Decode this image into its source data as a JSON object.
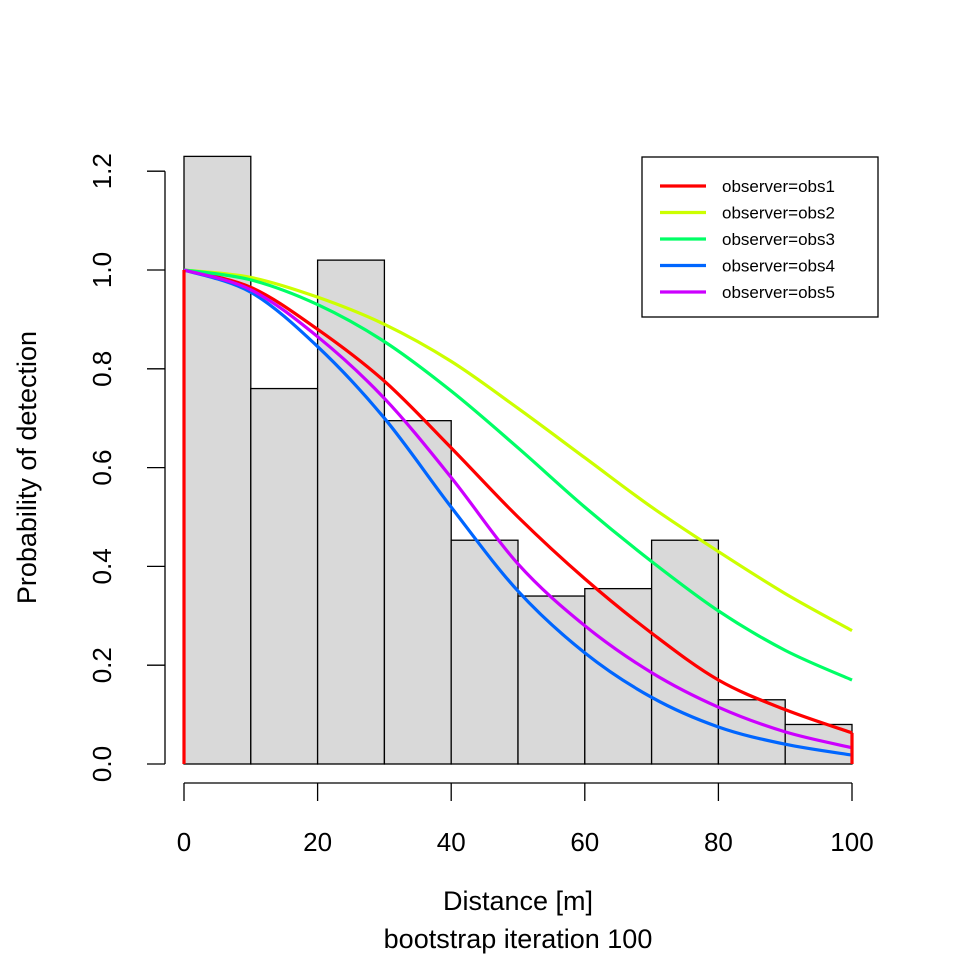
{
  "chart_data": {
    "type": "histogram-line",
    "title": "",
    "xlabel": "Distance [m]",
    "ylabel": "Probability of detection",
    "subtitle": "bootstrap iteration 100",
    "xlim": [
      0,
      100
    ],
    "ylim": [
      0,
      1.23
    ],
    "x_ticks": [
      "0",
      "20",
      "40",
      "60",
      "80",
      "100"
    ],
    "y_ticks": [
      "0.0",
      "0.2",
      "0.4",
      "0.6",
      "0.8",
      "1.0",
      "1.2"
    ],
    "grid": false,
    "legend_position": "top-right",
    "histogram": {
      "bin_edges": [
        0,
        10,
        20,
        30,
        40,
        50,
        60,
        70,
        80,
        90,
        100
      ],
      "values": [
        1.23,
        0.76,
        1.02,
        0.695,
        0.453,
        0.34,
        0.355,
        0.453,
        0.13,
        0.08
      ],
      "fill": "#d9d9d9"
    },
    "series": [
      {
        "name": "observer=obs1",
        "color": "#ff0000",
        "x": [
          0,
          10,
          20,
          30,
          40,
          50,
          60,
          70,
          80,
          90,
          100
        ],
        "y": [
          1.0,
          0.965,
          0.88,
          0.775,
          0.64,
          0.5,
          0.375,
          0.265,
          0.17,
          0.11,
          0.063
        ]
      },
      {
        "name": "observer=obs2",
        "color": "#ccff00",
        "x": [
          0,
          10,
          20,
          30,
          40,
          50,
          60,
          70,
          80,
          90,
          100
        ],
        "y": [
          1.0,
          0.985,
          0.945,
          0.89,
          0.815,
          0.72,
          0.62,
          0.52,
          0.43,
          0.345,
          0.27
        ]
      },
      {
        "name": "observer=obs3",
        "color": "#00ff66",
        "x": [
          0,
          10,
          20,
          30,
          40,
          50,
          60,
          70,
          80,
          90,
          100
        ],
        "y": [
          1.0,
          0.98,
          0.93,
          0.855,
          0.755,
          0.64,
          0.52,
          0.41,
          0.31,
          0.23,
          0.17
        ]
      },
      {
        "name": "observer=obs4",
        "color": "#0066ff",
        "x": [
          0,
          10,
          20,
          30,
          40,
          50,
          60,
          70,
          80,
          90,
          100
        ],
        "y": [
          1.0,
          0.955,
          0.845,
          0.7,
          0.52,
          0.35,
          0.225,
          0.135,
          0.075,
          0.04,
          0.018
        ]
      },
      {
        "name": "observer=obs5",
        "color": "#cc00ff",
        "x": [
          0,
          10,
          20,
          30,
          40,
          50,
          60,
          70,
          80,
          90,
          100
        ],
        "y": [
          1.0,
          0.96,
          0.865,
          0.74,
          0.58,
          0.405,
          0.28,
          0.185,
          0.115,
          0.065,
          0.033
        ]
      }
    ],
    "vertical_lines": [
      {
        "x": 0,
        "y_from": 0,
        "y_to": 1.0,
        "color": "#ff0000"
      },
      {
        "x": 100,
        "y_from": 0,
        "y_to": 0.063,
        "color": "#ff0000"
      }
    ]
  }
}
